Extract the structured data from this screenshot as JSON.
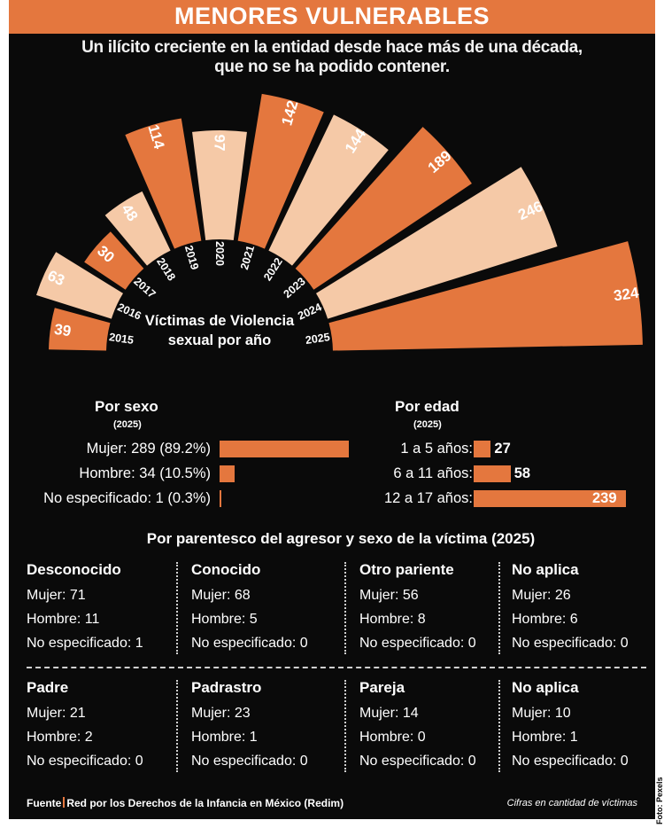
{
  "header": {
    "title": "MENORES VULNERABLES",
    "subtitle_line1": "Un ilícito creciente en la entidad desde hace más de una década,",
    "subtitle_line2": "que no se ha podido contener."
  },
  "chart_data": {
    "type": "bar",
    "title": "Víctimas de Violencia sexual por año",
    "title_line1": "Víctimas de Violencia",
    "title_line2": "sexual por año",
    "categories": [
      "2015",
      "2016",
      "2017",
      "2018",
      "2019",
      "2020",
      "2021",
      "2022",
      "2023",
      "2024",
      "2025"
    ],
    "values": [
      39,
      63,
      30,
      48,
      114,
      97,
      142,
      144,
      189,
      246,
      324
    ],
    "value_labels": [
      "39",
      "63",
      "30",
      "48",
      "114",
      "97",
      "142",
      "144",
      "189",
      "246",
      "324"
    ],
    "colors": [
      "#e4773e",
      "#f5c9a7"
    ],
    "layout": "radial fan"
  },
  "by_sex": {
    "title": "Por sexo",
    "note": "(2025)",
    "items": [
      {
        "label": "Mujer: 289 (89.2%)",
        "value": 289
      },
      {
        "label": "Hombre: 34 (10.5%)",
        "value": 34
      },
      {
        "label": "No especificado: 1 (0.3%)",
        "value": 1
      }
    ]
  },
  "by_age": {
    "title": "Por edad",
    "note": "(2025)",
    "items": [
      {
        "label": "1 a 5 años:",
        "value": 27,
        "value_label": "27"
      },
      {
        "label": "6 a 11 años:",
        "value": 58,
        "value_label": "58"
      },
      {
        "label": "12 a 17 años:",
        "value": 239,
        "value_label": "239"
      }
    ]
  },
  "relationship": {
    "title": "Por parentesco del agresor y sexo de la víctima (2025)",
    "groups": [
      {
        "name": "Desconocido",
        "lines": [
          "Mujer: 71",
          "Hombre: 11",
          "No especificado: 1"
        ]
      },
      {
        "name": "Conocido",
        "lines": [
          "Mujer: 68",
          "Hombre: 5",
          "No especificado: 0"
        ]
      },
      {
        "name": "Otro pariente",
        "lines": [
          "Mujer: 56",
          "Hombre: 8",
          "No especificado: 0"
        ]
      },
      {
        "name": "No aplica",
        "lines": [
          "Mujer: 26",
          "Hombre: 6",
          "No especificado: 0"
        ]
      },
      {
        "name": "Padre",
        "lines": [
          "Mujer: 21",
          "Hombre: 2",
          "No especificado: 0"
        ]
      },
      {
        "name": "Padrastro",
        "lines": [
          "Mujer: 23",
          "Hombre: 1",
          "No especificado: 0"
        ]
      },
      {
        "name": "Pareja",
        "lines": [
          "Mujer: 14",
          "Hombre: 0",
          "No especificado: 0"
        ]
      },
      {
        "name": "No aplica",
        "lines": [
          "Mujer: 10",
          "Hombre: 1",
          "No especificado: 0"
        ]
      }
    ]
  },
  "footer": {
    "source_label": "Fuente",
    "source_text": "Red por los Derechos de la Infancia en México (Redim)",
    "units_note": "Cifras en cantidad de víctimas",
    "photo_credit": "Foto: Pexels"
  }
}
